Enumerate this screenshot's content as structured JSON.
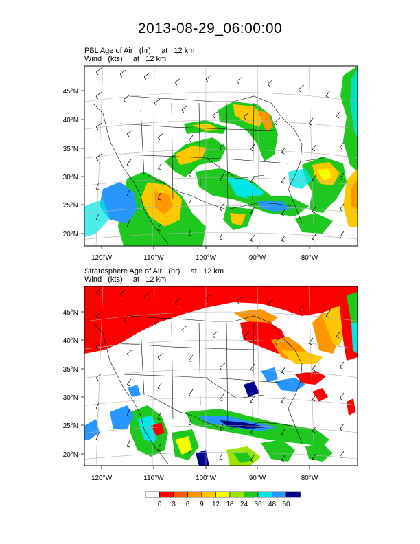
{
  "title": "2013-08-29_06:00:00",
  "panels": [
    {
      "line1": "PBL Age of Air   (hr)     at   12 km",
      "line2": "Wind   (kts)     at   12 km",
      "lat_labels": [
        "45°N",
        "40°N",
        "35°N",
        "30°N",
        "25°N",
        "20°N"
      ],
      "lon_labels": [
        "120°W",
        "110°W",
        "100°W",
        "90°W",
        "80°W"
      ]
    },
    {
      "line1": "Stratosphere Age of Air   (hr)     at   12 km",
      "line2": "Wind   (kts)     at   12 km",
      "lat_labels": [
        "45°N",
        "40°N",
        "35°N",
        "30°N",
        "25°N",
        "20°N"
      ],
      "lon_labels": [
        "120°W",
        "110°W",
        "100°W",
        "90°W",
        "80°W"
      ]
    }
  ],
  "colorbar": {
    "labels": [
      "0",
      "3",
      "6",
      "9",
      "12",
      "18",
      "24",
      "36",
      "48",
      "60"
    ],
    "colors": [
      "#ffffff",
      "#ff0000",
      "#ff5a00",
      "#ff9600",
      "#ffc800",
      "#f5ff00",
      "#9be600",
      "#1ec81e",
      "#00e6e6",
      "#2896ff",
      "#00008c"
    ]
  }
}
